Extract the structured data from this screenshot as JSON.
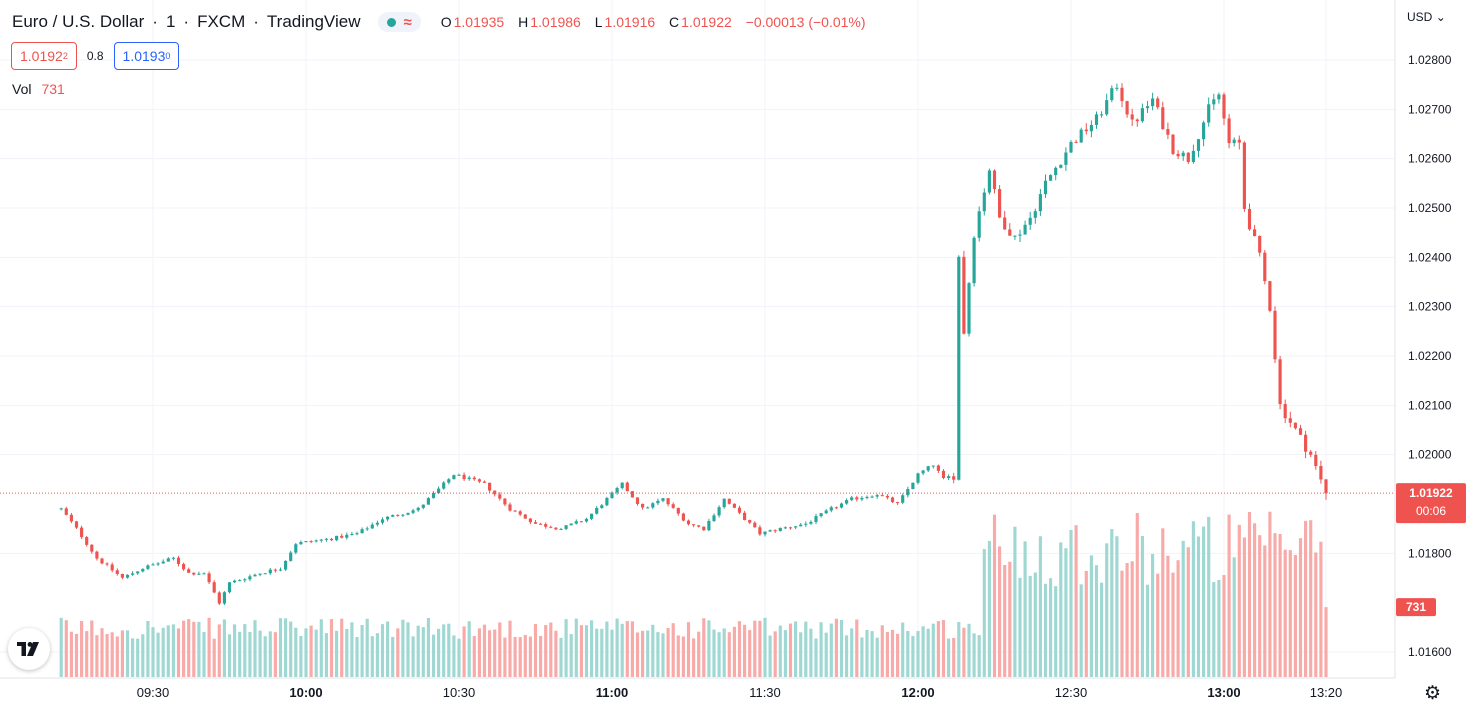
{
  "header": {
    "symbol": "Euro / U.S. Dollar",
    "interval": "1",
    "exchange": "FXCM",
    "source": "TradingView",
    "open_label": "O",
    "open": "1.01935",
    "high_label": "H",
    "high": "1.01986",
    "low_label": "L",
    "low": "1.01916",
    "close_label": "C",
    "close": "1.01922",
    "change": "−0.00013 (−0.01%)"
  },
  "quotes": {
    "sell_main": "1.0192",
    "sell_frac": "2",
    "spread": "0.8",
    "buy_main": "1.0193",
    "buy_frac": "0"
  },
  "volume": {
    "label": "Vol",
    "value": "731"
  },
  "price_scale": {
    "currency": "USD"
  },
  "last_price": {
    "price": "1.01922",
    "countdown": "00:06",
    "volume": "731"
  },
  "colors": {
    "up": "#26a69a",
    "down": "#ef5350",
    "up_vol": "#9fd8d3",
    "down_vol": "#f7aaa8",
    "grid": "#f0f3fa"
  },
  "icons": {
    "logo": "tradingview-logo-icon",
    "settings": "gear-icon",
    "dropdown": "chevron-down-icon"
  },
  "chart_data": {
    "type": "candlestick",
    "interval_minutes": 1,
    "time_range": [
      "09:12",
      "13:20"
    ],
    "ylim": [
      1.0155,
      1.0286
    ],
    "y_ticks": [
      "1.02800",
      "1.02700",
      "1.02600",
      "1.02500",
      "1.02400",
      "1.02300",
      "1.02200",
      "1.02100",
      "1.02000",
      "1.01800",
      "1.01600"
    ],
    "x_ticks": [
      "09:30",
      "10:00",
      "10:30",
      "11:00",
      "11:30",
      "12:00",
      "12:30",
      "13:00",
      "13:20"
    ],
    "x_ticks_bold": [
      "10:00",
      "11:00",
      "12:00",
      "13:00"
    ],
    "anchors": [
      [
        "09:12",
        1.0189
      ],
      [
        "09:15",
        1.0185
      ],
      [
        "09:19",
        1.0179
      ],
      [
        "09:24",
        1.0175
      ],
      [
        "09:28",
        1.0177
      ],
      [
        "09:34",
        1.0179
      ],
      [
        "09:37",
        1.0176
      ],
      [
        "09:40",
        1.0176
      ],
      [
        "09:43",
        1.017
      ],
      [
        "09:45",
        1.0174
      ],
      [
        "09:51",
        1.0176
      ],
      [
        "09:55",
        1.0177
      ],
      [
        "09:58",
        1.0182
      ],
      [
        "10:05",
        1.0183
      ],
      [
        "10:10",
        1.0184
      ],
      [
        "10:15",
        1.0187
      ],
      [
        "10:22",
        1.0189
      ],
      [
        "10:26",
        1.0193
      ],
      [
        "10:29",
        1.0196
      ],
      [
        "10:35",
        1.0194
      ],
      [
        "10:40",
        1.0189
      ],
      [
        "10:45",
        1.0186
      ],
      [
        "10:50",
        1.0185
      ],
      [
        "10:55",
        1.0187
      ],
      [
        "10:59",
        1.0191
      ],
      [
        "11:02",
        1.0194
      ],
      [
        "11:06",
        1.0189
      ],
      [
        "11:10",
        1.0191
      ],
      [
        "11:15",
        1.0186
      ],
      [
        "11:18",
        1.0185
      ],
      [
        "11:22",
        1.0191
      ],
      [
        "11:26",
        1.0187
      ],
      [
        "11:29",
        1.0184
      ],
      [
        "11:33",
        1.0185
      ],
      [
        "11:38",
        1.0186
      ],
      [
        "11:43",
        1.0189
      ],
      [
        "11:47",
        1.0191
      ],
      [
        "11:52",
        1.0192
      ],
      [
        "11:56",
        1.019
      ],
      [
        "12:00",
        1.0196
      ],
      [
        "12:03",
        1.0198
      ],
      [
        "12:05",
        1.0195
      ],
      [
        "12:07",
        1.0196
      ],
      [
        "12:08",
        1.024
      ],
      [
        "12:09",
        1.0225
      ],
      [
        "12:11",
        1.0245
      ],
      [
        "12:14",
        1.0258
      ],
      [
        "12:16",
        1.0248
      ],
      [
        "12:19",
        1.0244
      ],
      [
        "12:22",
        1.0248
      ],
      [
        "12:25",
        1.0255
      ],
      [
        "12:30",
        1.0263
      ],
      [
        "12:35",
        1.0268
      ],
      [
        "12:39",
        1.0275
      ],
      [
        "12:42",
        1.0267
      ],
      [
        "12:46",
        1.0272
      ],
      [
        "12:50",
        1.0262
      ],
      [
        "12:53",
        1.026
      ],
      [
        "12:57",
        1.027
      ],
      [
        "12:59",
        1.0273
      ],
      [
        "13:01",
        1.0263
      ],
      [
        "13:03",
        1.0263
      ],
      [
        "13:04",
        1.025
      ],
      [
        "13:07",
        1.024
      ],
      [
        "13:09",
        1.023
      ],
      [
        "13:11",
        1.021
      ],
      [
        "13:14",
        1.0205
      ],
      [
        "13:17",
        1.02
      ],
      [
        "13:20",
        1.0192
      ]
    ],
    "volume_ylim": [
      0,
      1800
    ],
    "volume_segments": [
      [
        "09:12",
        "12:12",
        400,
        620
      ],
      [
        "12:13",
        "13:04",
        950,
        1750
      ],
      [
        "13:05",
        "13:20",
        1000,
        1750
      ]
    ],
    "last_volume": 731
  }
}
